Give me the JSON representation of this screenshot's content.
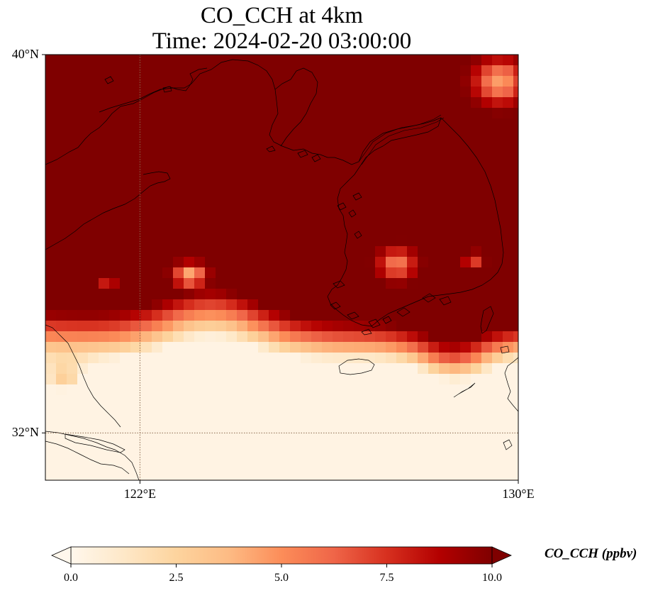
{
  "title_line1": "CO_CCH at 4km",
  "title_line2": "Time: 2024-02-20 03:00:00",
  "lat_ticks": [
    {
      "label": "40°N",
      "value": 40
    },
    {
      "label": "32°N",
      "value": 32
    }
  ],
  "lon_ticks": [
    {
      "label": "122°E",
      "value": 122
    },
    {
      "label": "130°E",
      "value": 130
    }
  ],
  "extent": {
    "lon_min": 120,
    "lon_max": 130,
    "lat_min": 31,
    "lat_max": 40
  },
  "colorbar": {
    "label": "CO_CCH (ppbv)",
    "min": 0.0,
    "max": 10.0,
    "ticks": [
      "0.0",
      "2.5",
      "5.0",
      "7.5",
      "10.0"
    ],
    "extend": "both",
    "colormap": "OrRd",
    "stops": [
      "#fff7ec",
      "#fee8c8",
      "#fdd49e",
      "#fdbb84",
      "#fc8d59",
      "#ef6548",
      "#d7301f",
      "#b30000",
      "#7f0000"
    ]
  },
  "gridlines": "dotted",
  "gridline_color": "#8b6a4f"
}
